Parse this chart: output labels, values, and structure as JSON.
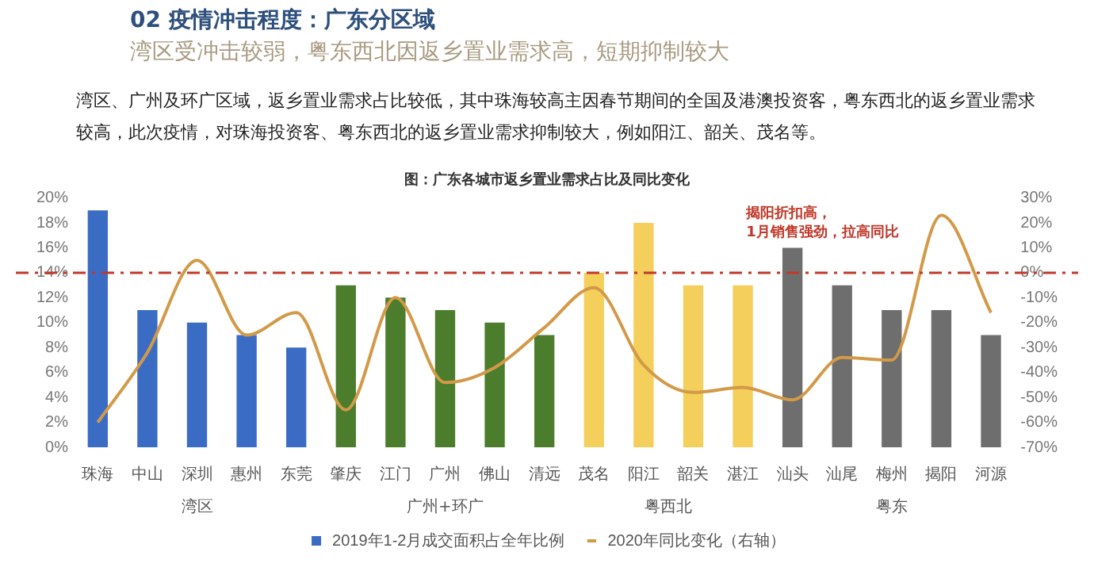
{
  "chart_data": {
    "type": "bar",
    "title": "图：广东各城市返乡置业需求占比及同比变化",
    "subtitle": "湾区受冲击较弱，粤东西北因返乡置业需求高，短期抑制较大",
    "categories": [
      "珠海",
      "中山",
      "深圳",
      "惠州",
      "东莞",
      "肇庆",
      "江门",
      "广州",
      "佛山",
      "清远",
      "茂名",
      "阳江",
      "韶关",
      "湛江",
      "汕头",
      "汕尾",
      "梅州",
      "揭阳",
      "河源"
    ],
    "series": [
      {
        "name": "2019年1-2月成交面积占全年比例",
        "color": "#3b6cc4",
        "colors": [
          "#3b6cc4",
          "#3b6cc4",
          "#3b6cc4",
          "#3b6cc4",
          "#3b6cc4",
          "#4b7d2c",
          "#4b7d2c",
          "#4b7d2c",
          "#4b7d2c",
          "#4b7d2c",
          "#f5cf5c",
          "#f5cf5c",
          "#f5cf5c",
          "#f5cf5c",
          "#6e6e6e",
          "#6e6e6e",
          "#6e6e6e",
          "#6e6e6e",
          "#6e6e6e"
        ],
        "values": [
          19,
          11,
          10,
          9,
          8,
          13,
          12,
          11,
          10,
          9,
          14,
          18,
          13,
          13,
          16,
          13,
          11,
          11,
          9
        ]
      },
      {
        "name": "2020年同比变化（右轴）",
        "type": "line",
        "axis": "y2",
        "color": "#d29a48",
        "values": [
          -60,
          -32,
          5,
          -25,
          -16,
          -55,
          -10,
          -44,
          -38,
          -22,
          -6,
          -37,
          -48,
          -46,
          -51,
          -34,
          -35,
          23,
          -16
        ]
      }
    ],
    "ylim": [
      0,
      20
    ],
    "yticks": [
      {
        "value": 0,
        "label": "0%"
      },
      {
        "value": 2,
        "label": "2%"
      },
      {
        "value": 4,
        "label": "4%"
      },
      {
        "value": 6,
        "label": "6%"
      },
      {
        "value": 8,
        "label": "8%"
      },
      {
        "value": 10,
        "label": "10%"
      },
      {
        "value": 12,
        "label": "12%"
      },
      {
        "value": 14,
        "label": "14%"
      },
      {
        "value": 16,
        "label": "16%"
      },
      {
        "value": 18,
        "label": "18%"
      },
      {
        "value": 20,
        "label": "20%"
      }
    ],
    "y2lim": [
      -70,
      30
    ],
    "y2ticks": [
      {
        "value": -70,
        "label": "-70%"
      },
      {
        "value": -60,
        "label": "-60%"
      },
      {
        "value": -50,
        "label": "-50%"
      },
      {
        "value": -40,
        "label": "-40%"
      },
      {
        "value": -30,
        "label": "-30%"
      },
      {
        "value": -20,
        "label": "-20%"
      },
      {
        "value": -10,
        "label": "-10%"
      },
      {
        "value": 0,
        "label": "0%"
      },
      {
        "value": 10,
        "label": "10%"
      },
      {
        "value": 20,
        "label": "20%"
      },
      {
        "value": 30,
        "label": "30%"
      }
    ],
    "ref_lines": [
      {
        "axis": "y2",
        "value": 0,
        "color": "#c0392b",
        "line_style": "dashdot"
      }
    ],
    "annotations": [
      "02 疫情冲击程度：广东分区域",
      "湾区、广州及环广区域，返乡置业需求占比较低，其中珠海较高主因春节期间的全国及港澳投资客，粤东西北的返乡置业需求较高，此次疫情，对珠海投资客、粤东西北的返乡置业需求抑制较大，例如阳江、韶关、茂名等。",
      "揭阳折扣高，\n1月销售强劲，拉高同比",
      "湾区",
      "广州+环广",
      "粤西北",
      "粤东"
    ],
    "legend": "bottom",
    "grid": false,
    "marker": "none"
  }
}
